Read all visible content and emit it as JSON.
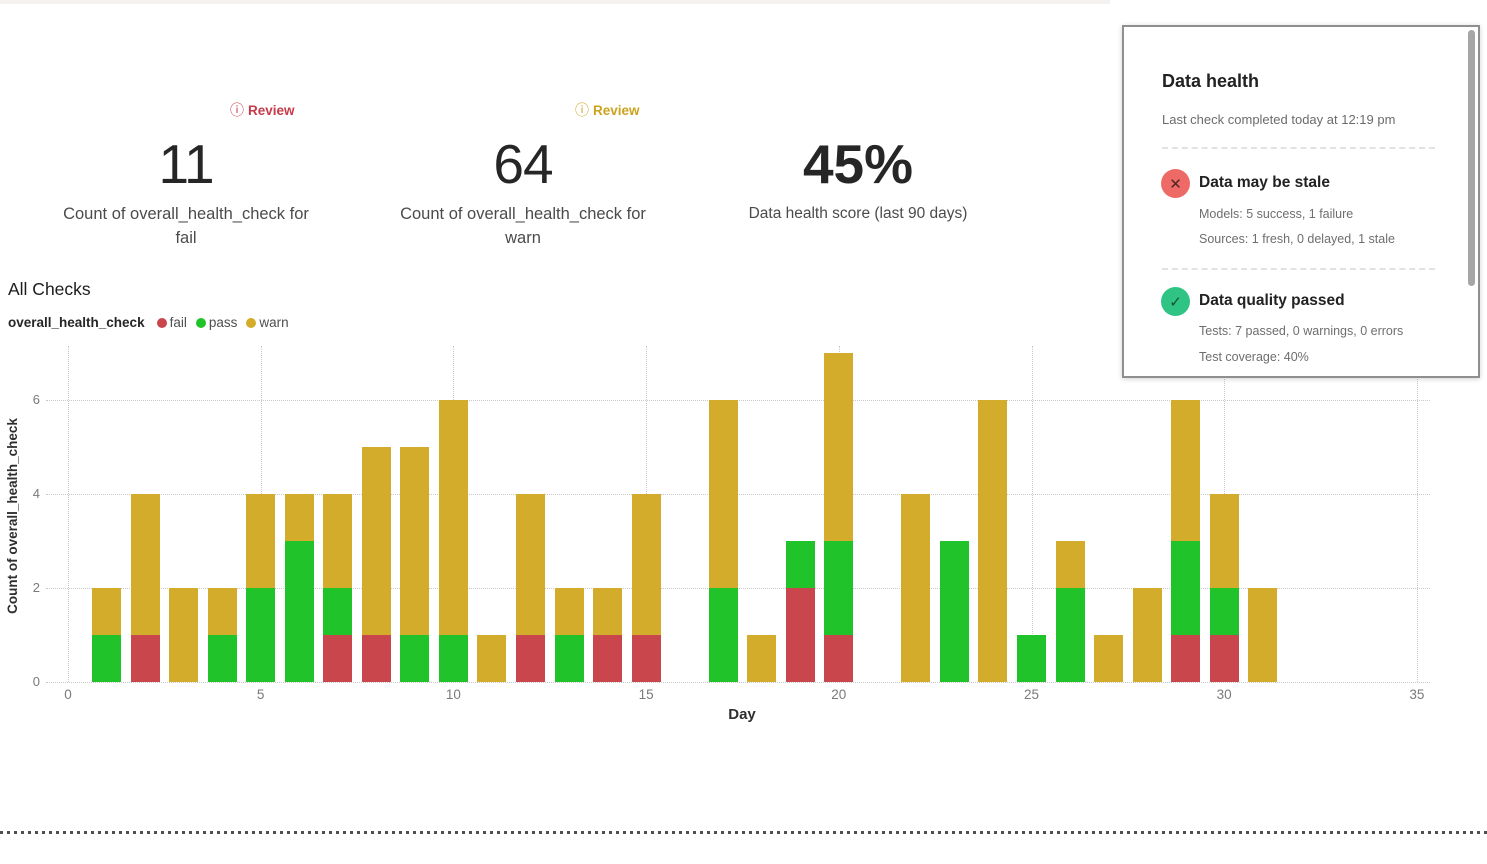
{
  "metrics": [
    {
      "value": "11",
      "label": "Count of overall_health_check for fail",
      "review_label": "Review",
      "review_color": "#c73a4a"
    },
    {
      "value": "64",
      "label": "Count of overall_health_check for warn",
      "review_label": "Review",
      "review_color": "#cda21e"
    },
    {
      "value": "45%",
      "label": "Data health score (last 90 days)"
    }
  ],
  "section": {
    "title": "All Checks",
    "series_label": "overall_health_check",
    "legend": [
      {
        "label": "fail",
        "color": "#c9464d"
      },
      {
        "label": "pass",
        "color": "#21c32b"
      },
      {
        "label": "warn",
        "color": "#d3ac2b"
      }
    ]
  },
  "chart_data": {
    "type": "bar",
    "stacked": true,
    "title": "All Checks",
    "xlabel": "Day",
    "ylabel": "Count of overall_health_check",
    "x": [
      1,
      2,
      3,
      4,
      5,
      6,
      7,
      8,
      9,
      10,
      11,
      12,
      13,
      14,
      15,
      16,
      17,
      18,
      19,
      20,
      21,
      22,
      23,
      24,
      25,
      26,
      27,
      28,
      29,
      30,
      31
    ],
    "series": [
      {
        "name": "fail",
        "color": "#c9464d",
        "values": [
          0,
          1,
          0,
          0,
          0,
          0,
          1,
          1,
          0,
          0,
          0,
          1,
          0,
          1,
          1,
          0,
          0,
          0,
          2,
          1,
          0,
          0,
          0,
          0,
          0,
          0,
          0,
          0,
          1,
          1,
          0
        ]
      },
      {
        "name": "pass",
        "color": "#21c32b",
        "values": [
          1,
          0,
          0,
          1,
          2,
          3,
          1,
          0,
          1,
          1,
          0,
          0,
          1,
          0,
          0,
          0,
          2,
          0,
          1,
          2,
          0,
          0,
          3,
          0,
          1,
          2,
          0,
          0,
          2,
          1,
          0
        ]
      },
      {
        "name": "warn",
        "color": "#d3ac2b",
        "values": [
          1,
          3,
          2,
          1,
          2,
          1,
          2,
          4,
          4,
          5,
          1,
          3,
          1,
          1,
          3,
          0,
          4,
          1,
          0,
          4,
          0,
          4,
          0,
          6,
          0,
          1,
          1,
          2,
          3,
          2,
          2
        ]
      }
    ],
    "xlim": [
      0,
      35
    ],
    "ylim": [
      0,
      7.15
    ],
    "x_ticks": [
      0,
      5,
      10,
      15,
      20,
      25,
      30,
      35
    ],
    "y_ticks": [
      0,
      2,
      4,
      6
    ],
    "grid": "dotted",
    "legend_position": "top-left"
  },
  "panel": {
    "title": "Data health",
    "subtitle": "Last check completed today at 12:19 pm",
    "statuses": [
      {
        "icon": "x-circle",
        "icon_color": "#ee6a66",
        "title": "Data may be stale",
        "lines": [
          "Models: 5 success, 1 failure",
          "Sources: 1 fresh, 0 delayed, 1 stale"
        ]
      },
      {
        "icon": "check-circle",
        "icon_color": "#2fc483",
        "title": "Data quality passed",
        "lines": [
          "Tests: 7 passed, 0 warnings, 0 errors",
          "Test coverage: 40%"
        ]
      }
    ]
  }
}
